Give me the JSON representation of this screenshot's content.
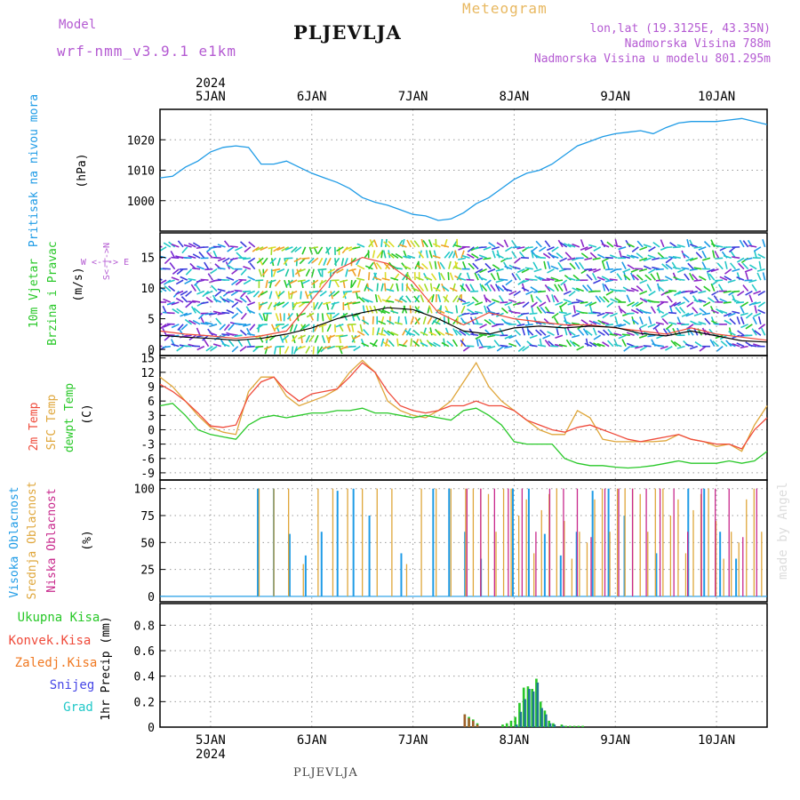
{
  "header": {
    "model_label": "Model",
    "model_name": "wrf-nmm_v3.9.1 e1km",
    "station": "PLJEVLJA",
    "product": "Meteogram",
    "lonlat": "lon,lat (19.3125E, 43.35N)",
    "elevation": "Nadmorska Visina 788m",
    "model_elevation": "Nadmorska Visina u modelu 801.295m"
  },
  "footer_station": "PLJEVLJA",
  "watermark": "made by Angel",
  "top_axis": {
    "year": "2024",
    "days": [
      "5JAN",
      "6JAN",
      "7JAN",
      "8JAN",
      "9JAN",
      "10JAN"
    ]
  },
  "bottom_axis": {
    "year": "2024",
    "days": [
      "5JAN",
      "6JAN",
      "7JAN",
      "8JAN",
      "9JAN",
      "10JAN"
    ]
  },
  "colors": {
    "pressure": "#1e9be6",
    "temp2m": "#ef4a3a",
    "sfc": "#dfa63a",
    "dewpt": "#28c828",
    "high_cloud": "#1e9be6",
    "mid_cloud": "#dfa63a",
    "low_cloud": "#c8288c",
    "total_precip": "#28c828",
    "conv_precip": "#ef4a3a",
    "grid_precip": "#f07820",
    "snow": "#4646e6",
    "graupel": "#20c8c8",
    "label_purple": "#b45ad2"
  },
  "chart_data": [
    {
      "type": "line",
      "title": "",
      "ylabel": "Pritisak na nivou mora",
      "unit": "(hPa)",
      "yticks": [
        1000,
        1010,
        1020
      ],
      "ylim": [
        990,
        1030
      ],
      "x_hours": [
        0,
        3,
        6,
        9,
        12,
        15,
        18,
        21,
        24,
        27,
        30,
        33,
        36,
        39,
        42,
        45,
        48,
        51,
        54,
        57,
        60,
        63,
        66,
        69,
        72,
        75,
        78,
        81,
        84,
        87,
        90,
        93,
        96,
        99,
        102,
        105,
        108,
        111,
        114,
        117,
        120,
        123,
        126,
        129,
        132,
        135,
        138,
        141,
        144
      ],
      "series": [
        {
          "values": [
            1007.5,
            1008,
            1011,
            1013,
            1016,
            1017.5,
            1018,
            1017.5,
            1012,
            1012,
            1013,
            1011,
            1009,
            1007.5,
            1006,
            1004,
            1001,
            999.5,
            998.5,
            997,
            995.5,
            995,
            993.5,
            994,
            996,
            999,
            1001,
            1004,
            1007,
            1009,
            1010,
            1012,
            1015,
            1018,
            1019.5,
            1021,
            1022,
            1022.5,
            1023,
            1022,
            1024,
            1025.5,
            1026,
            1026,
            1026,
            1026.5,
            1027,
            1026,
            1025
          ]
        }
      ]
    },
    {
      "type": "line",
      "title": "",
      "ylabel": "10m Vjetar Brzina i Pravac",
      "unit": "(m/s)",
      "compass": [
        "N",
        "W",
        "E",
        "S"
      ],
      "yticks": [
        0,
        5,
        10,
        15
      ],
      "ylim": [
        -1,
        19
      ],
      "x_hours": [
        0,
        6,
        12,
        18,
        24,
        30,
        36,
        42,
        48,
        54,
        60,
        66,
        72,
        78,
        84,
        90,
        96,
        102,
        108,
        114,
        120,
        126,
        132,
        138,
        144
      ],
      "series": [
        {
          "name": "speed",
          "values": [
            2.3,
            2,
            1.8,
            1.5,
            1.8,
            2.5,
            3.5,
            5,
            6,
            6.8,
            6.5,
            5,
            3,
            2.5,
            3.5,
            3.8,
            3.5,
            3.8,
            3.6,
            2.6,
            2.2,
            3,
            2.2,
            1.4,
            1.2
          ]
        },
        {
          "name": "gust",
          "values": [
            3,
            2.5,
            2.2,
            1.8,
            2.2,
            3,
            8,
            13,
            15,
            14,
            11,
            6,
            4,
            6,
            5,
            4.5,
            4,
            4,
            3.5,
            3,
            2.5,
            3.5,
            2.5,
            2,
            1.5
          ]
        }
      ],
      "direction_bands": [
        {
          "from": 0,
          "to": 23,
          "color": "mixed blue/purple"
        },
        {
          "from": 23,
          "to": 72,
          "color": "cyan/green/yellow"
        },
        {
          "from": 72,
          "to": 144,
          "color": "mixed cyan/blue/purple"
        }
      ]
    },
    {
      "type": "line",
      "title": "",
      "ylabel": "2m Temp / SFC Temp / dewpt Temp",
      "unit": "(C)",
      "yticks": [
        -9,
        -6,
        -3,
        0,
        3,
        6,
        9,
        12,
        15
      ],
      "ylim": [
        -10.5,
        15.5
      ],
      "x_hours": [
        0,
        3,
        6,
        9,
        12,
        15,
        18,
        21,
        24,
        27,
        30,
        33,
        36,
        39,
        42,
        45,
        48,
        51,
        54,
        57,
        60,
        63,
        66,
        69,
        72,
        75,
        78,
        81,
        84,
        87,
        90,
        93,
        96,
        99,
        102,
        105,
        108,
        111,
        114,
        117,
        120,
        123,
        126,
        129,
        132,
        135,
        138,
        141,
        144
      ],
      "series": [
        {
          "name": "2m Temp",
          "values": [
            9.5,
            8,
            6,
            3.5,
            0.8,
            0.5,
            1,
            7,
            10,
            11,
            8,
            6,
            7.5,
            8,
            8.5,
            11,
            14,
            12,
            8,
            5,
            4,
            3.5,
            4,
            5,
            5,
            6,
            5,
            5,
            4,
            2,
            1,
            0,
            -0.5,
            0.5,
            1,
            0,
            -1,
            -2,
            -2.5,
            -2,
            -1.5,
            -1,
            -2,
            -2.5,
            -3,
            -3,
            -4,
            0,
            2.5
          ]
        },
        {
          "name": "SFC Temp",
          "values": [
            11,
            9,
            6,
            3,
            0.5,
            -0.5,
            -1,
            8,
            11,
            11,
            7,
            5,
            6,
            7,
            8.5,
            12,
            14.5,
            12,
            6,
            4,
            3,
            2.5,
            4,
            6,
            10,
            14,
            9,
            6,
            4,
            2,
            0,
            -1,
            -1,
            4,
            2.5,
            -2,
            -2.5,
            -2.5,
            -2.5,
            -2.5,
            -2.3,
            -1,
            -2,
            -2.5,
            -3.5,
            -3,
            -4.5,
            1,
            5
          ]
        },
        {
          "name": "dewpt Temp",
          "values": [
            5,
            5.5,
            3,
            0,
            -1,
            -1.5,
            -2,
            1,
            2.5,
            3,
            2.5,
            3,
            3.5,
            3.5,
            4,
            4,
            4.5,
            3.5,
            3.5,
            3,
            2.5,
            3,
            2.5,
            2,
            4,
            4.5,
            3,
            1,
            -2.5,
            -3,
            -3,
            -3,
            -6,
            -7,
            -7.5,
            -7.5,
            -7.8,
            -8,
            -7.8,
            -7.5,
            -7,
            -6.5,
            -7,
            -7,
            -7,
            -6.5,
            -7,
            -6.5,
            -4.5
          ]
        }
      ]
    },
    {
      "type": "bar",
      "title": "",
      "ylabel": "Visoka Oblacnost / Srednja Oblacnost / Niska Oblacnost",
      "unit": "(%)",
      "yticks": [
        0,
        25,
        50,
        75,
        100
      ],
      "ylim": [
        -5,
        108
      ],
      "series": [
        {
          "name": "Visoka Oblacnost",
          "segments": [
            {
              "from": 0,
              "to": 23,
              "values": [
                0
              ]
            },
            {
              "from": 23,
              "to": 144,
              "values": [
                100,
                100,
                58,
                38,
                60,
                98,
                100,
                75,
                0,
                40,
                0,
                100,
                100,
                60,
                35,
                0
              ]
            }
          ]
        },
        {
          "name": "Srednja Oblacnost",
          "segments": [
            {
              "from": 23,
              "to": 72,
              "values": [
                100,
                100,
                100,
                30,
                100,
                100,
                100
              ]
            },
            {
              "from": 72,
              "to": 144,
              "values": [
                100,
                100,
                100,
                95,
                60,
                100,
                100,
                75,
                90,
                40,
                80,
                95,
                100,
                70,
                35,
                60,
                50,
                90,
                100,
                60
              ]
            }
          ]
        },
        {
          "name": "Niska Oblacnost",
          "segments": [
            {
              "from": 72,
              "to": 144,
              "values": [
                100,
                100,
                100,
                100,
                100,
                60,
                100,
                100,
                100,
                55,
                100
              ]
            }
          ]
        }
      ]
    },
    {
      "type": "bar",
      "title": "",
      "ylabel": "1hr Precip (mm)",
      "legend": [
        "Ukupna Kisa",
        "Konvek.Kisa",
        "Zaledj.Kisa",
        "Snijeg",
        "Grad"
      ],
      "yticks": [
        0,
        0.2,
        0.4,
        0.6,
        0.8
      ],
      "ylim": [
        0,
        0.97
      ],
      "x_hours": [
        72,
        73,
        74,
        75,
        76,
        77,
        78,
        79,
        80,
        81,
        82,
        83,
        84,
        85,
        86,
        87,
        88,
        89,
        90,
        91,
        92,
        93,
        95,
        96,
        97,
        98,
        99,
        100
      ],
      "series": [
        {
          "name": "Ukupna Kisa",
          "values": [
            0.1,
            0.08,
            0.06,
            0.03,
            0,
            0,
            0,
            0,
            0,
            0.02,
            0.03,
            0.05,
            0.08,
            0.19,
            0.31,
            0.32,
            0.3,
            0.38,
            0.2,
            0.13,
            0.05,
            0.03,
            0.02,
            0.01,
            0.01,
            0.01,
            0.01,
            0.01
          ]
        },
        {
          "name": "Zaledj.Kisa",
          "values": [
            0.1,
            0.07,
            0.05,
            0.02,
            0,
            0,
            0,
            0,
            0,
            0,
            0,
            0,
            0,
            0,
            0,
            0,
            0,
            0,
            0,
            0,
            0,
            0,
            0,
            0,
            0,
            0,
            0,
            0
          ]
        },
        {
          "name": "Snijeg",
          "values": [
            0,
            0,
            0,
            0,
            0,
            0,
            0,
            0,
            0,
            0,
            0,
            0,
            0.02,
            0.12,
            0.22,
            0.3,
            0.28,
            0.35,
            0.15,
            0.1,
            0.03,
            0.02,
            0.01,
            0,
            0,
            0,
            0,
            0
          ]
        }
      ]
    }
  ]
}
